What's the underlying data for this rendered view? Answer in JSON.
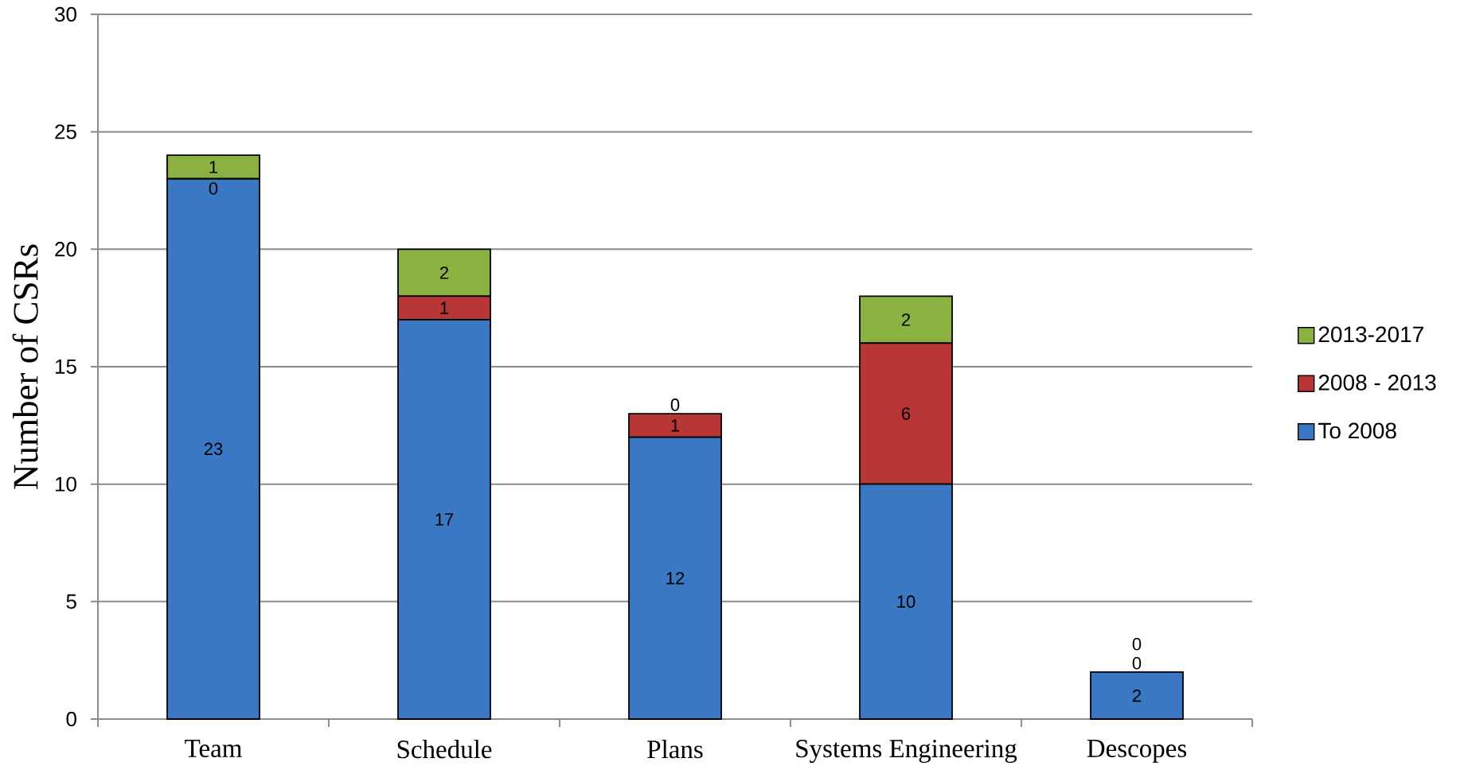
{
  "chart_data": {
    "type": "bar",
    "stacked": true,
    "ylabel": "Number of CSRs",
    "categories": [
      "Team",
      "Schedule",
      "Plans",
      "Systems Engineering",
      "Descopes"
    ],
    "series": [
      {
        "name": "To 2008",
        "color": "#3a78c4",
        "values": [
          23,
          17,
          12,
          10,
          2
        ]
      },
      {
        "name": "2008 - 2013",
        "color": "#b83636",
        "values": [
          0,
          1,
          1,
          6,
          0
        ]
      },
      {
        "name": "2013-2017",
        "color": "#8bb241",
        "values": [
          1,
          2,
          0,
          2,
          0
        ]
      }
    ],
    "ylim": [
      0,
      30
    ],
    "yticks": [
      0,
      5,
      10,
      15,
      20,
      25,
      30
    ],
    "grid": "y",
    "legend": "right",
    "data_labels": true
  }
}
